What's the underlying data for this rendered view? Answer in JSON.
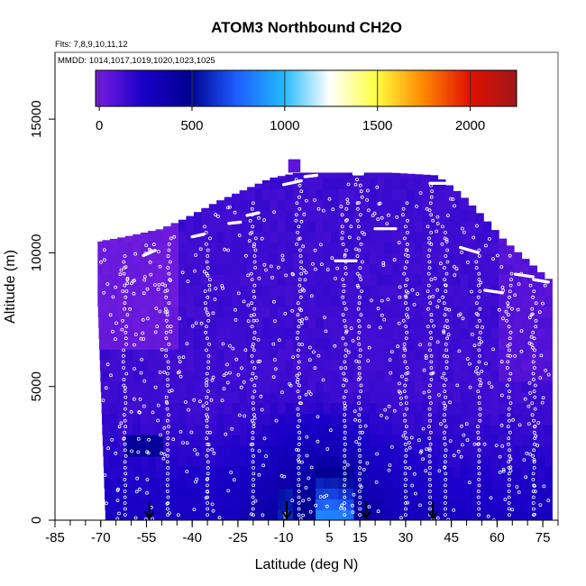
{
  "chart_data": {
    "type": "heatmap",
    "title": "ATOM3 Northbound CH2O",
    "flights_label": "Flts: 7,8,9,10,11,12",
    "mmdd_label": "MMDD: 1014,1017,1019,1020,1023,1025",
    "xlabel": "Latitude (deg N)",
    "ylabel": "Altitude (m)",
    "xlim": [
      -85,
      80
    ],
    "ylim": [
      0,
      17500
    ],
    "x_ticks": [
      -85,
      -70,
      -55,
      -40,
      -25,
      -10,
      5,
      15,
      30,
      45,
      60,
      75
    ],
    "x_tick_labels": [
      "-85",
      "-70",
      "-55",
      "-40",
      "-25",
      "-10",
      "5",
      "15",
      "30",
      "45",
      "60",
      "75"
    ],
    "y_ticks": [
      0,
      5000,
      10000,
      15000
    ],
    "y_tick_labels": [
      "0",
      "5000",
      "10000",
      "15000"
    ],
    "colorbar": {
      "range": [
        -20,
        2250
      ],
      "ticks": [
        0,
        500,
        1000,
        1500,
        2000
      ],
      "tick_labels": [
        "0",
        "500",
        "1000",
        "1500",
        "2000"
      ],
      "colors": [
        "#7a1fe0",
        "#1a00c8",
        "#000090",
        "#1e5cff",
        "#20b8ff",
        "#ffffff",
        "#ffff40",
        "#ff8800",
        "#e01000",
        "#a01818"
      ]
    },
    "arrow_latitudes": [
      -54,
      -9,
      17,
      39
    ],
    "colors": {
      "background_cell": "#3d10d8",
      "point": "#ffffff",
      "arrow": "#000000"
    }
  }
}
